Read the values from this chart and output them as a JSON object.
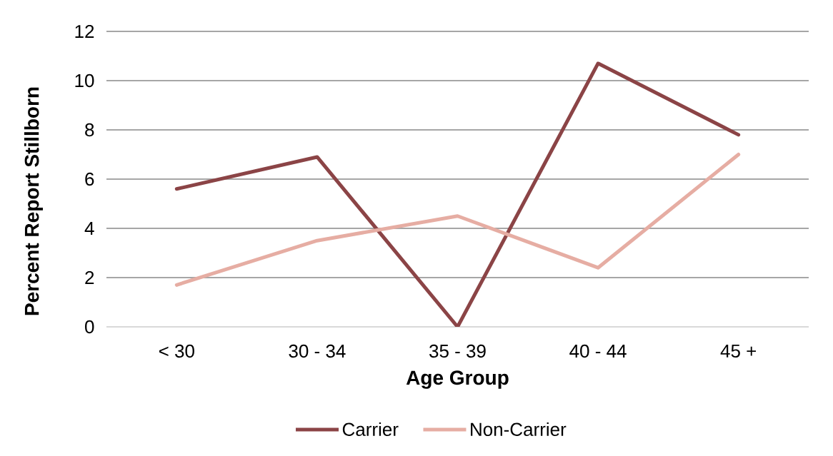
{
  "chart_data": {
    "type": "line",
    "xlabel": "Age Group",
    "ylabel": "Percent Report Stillborn",
    "categories": [
      "< 30",
      "30 - 34",
      "35 - 39",
      "40 - 44",
      "45 +"
    ],
    "series": [
      {
        "name": "Carrier",
        "color": "#8b4446",
        "values": [
          5.6,
          6.9,
          0,
          10.7,
          7.8
        ]
      },
      {
        "name": "Non-Carrier",
        "color": "#e6ada3",
        "values": [
          1.7,
          3.5,
          4.5,
          2.4,
          7.0
        ]
      }
    ],
    "ylim": [
      0,
      12
    ],
    "yticks": [
      0,
      2,
      4,
      6,
      8,
      10,
      12
    ],
    "grid": "y",
    "legend": "bottom",
    "line_style": "solid"
  }
}
